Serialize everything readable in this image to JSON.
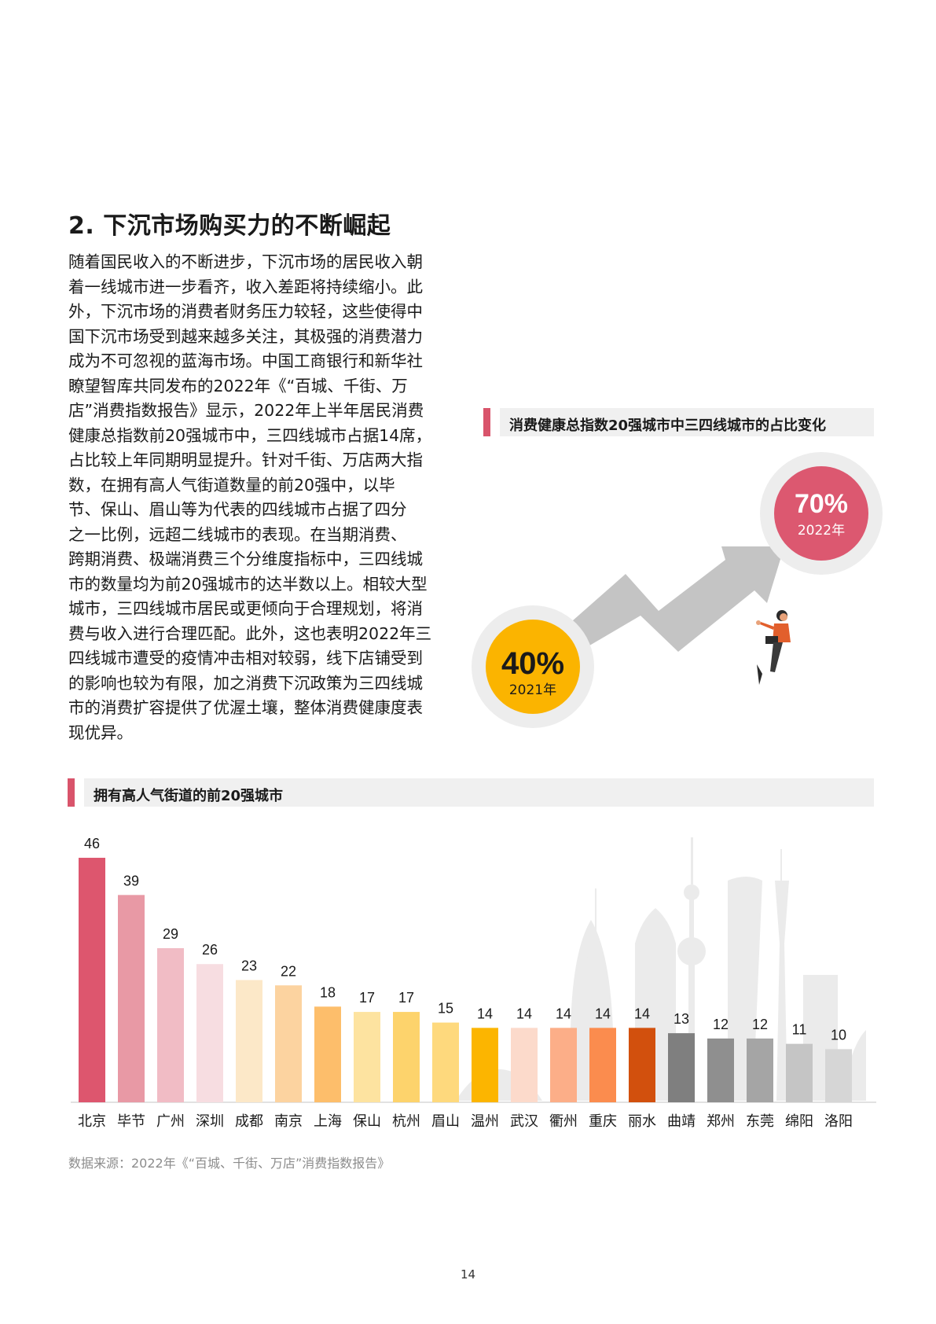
{
  "section": {
    "title": "2. 下沉市场购买力的不断崛起",
    "lines": [
      "随着国民收入的不断进步，下沉市场的居民收入朝",
      "着一线城市进一步看齐，收入差距将持续缩小。此",
      "外，下沉市场的消费者财务压力较轻，这些使得中",
      "国下沉市场受到越来越多关注，其极强的消费潜力",
      "成为不可忽视的蓝海市场。中国工商银行和新华社",
      "瞭望智库共同发布的2022年《“百城、千街、万",
      "店”消费指数报告》显示，2022年上半年居民消费",
      "健康总指数前20强城市中，三四线城市占据14席，",
      "占比较上年同期明显提升。针对千街、万店两大指",
      "数，在拥有高人气街道数量的前20强中，以毕",
      "节、保山、眉山等为代表的四线城市占据了四分",
      "之一比例，远超二线城市的表现。在当期消费、",
      "跨期消费、极端消费三个分维度指标中，三四线城",
      "市的数量均为前20强城市的达半数以上。相较大型",
      "城市，三四线城市居民或更倾向于合理规划，将消",
      "费与收入进行合理匹配。此外，这也表明2022年三",
      "四线城市遭受的疫情冲击相对较弱，线下店铺受到",
      "的影响也较为有限，加之消费下沉政策为三四线城",
      "市的消费扩容提供了优渥土壤，整体消费健康度表",
      "现优异。"
    ]
  },
  "infographic": {
    "title": "消费健康总指数20强城市中三四线城市的占比变化",
    "before": {
      "value": "40%",
      "year": "2021年",
      "color": "#fbb400"
    },
    "after": {
      "value": "70%",
      "year": "2022年",
      "color": "#dc5870"
    }
  },
  "chart": {
    "title": "拥有高人气街道的前20强城市",
    "source": "数据来源：2022年《“百城、千街、万店”消费指数报告》"
  },
  "chart_data": {
    "type": "bar",
    "categories": [
      "北京",
      "毕节",
      "广州",
      "深圳",
      "成都",
      "南京",
      "上海",
      "保山",
      "杭州",
      "眉山",
      "温州",
      "武汉",
      "衢州",
      "重庆",
      "丽水",
      "曲靖",
      "郑州",
      "东莞",
      "绵阳",
      "洛阳"
    ],
    "values": [
      46,
      39,
      29,
      26,
      23,
      22,
      18,
      17,
      17,
      15,
      14,
      14,
      14,
      14,
      14,
      13,
      12,
      12,
      11,
      10
    ],
    "colors": [
      "#dd566e",
      "#e899a5",
      "#f1bcc5",
      "#f7dde1",
      "#fce8c8",
      "#fcd3a0",
      "#fdbe6b",
      "#fde3a0",
      "#fdd36c",
      "#fed97d",
      "#fcb500",
      "#fcdacb",
      "#fcae88",
      "#fb8c4e",
      "#d2500d",
      "#7f7f7f",
      "#8f8f8f",
      "#a5a5a5",
      "#c5c5c5",
      "#d6d6d6"
    ],
    "ylim": [
      0,
      50
    ]
  },
  "page": {
    "number": "14"
  }
}
